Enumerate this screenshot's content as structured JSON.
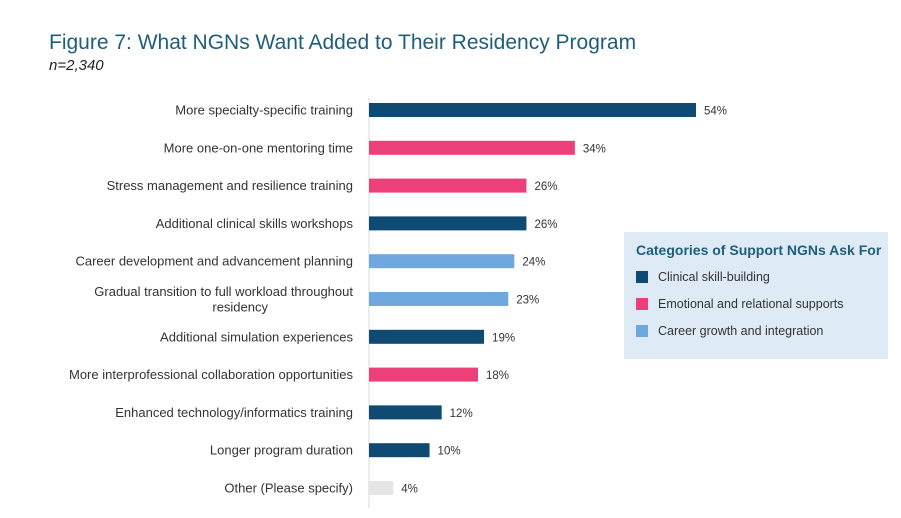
{
  "header": {
    "title": "Figure 7: What NGNs Want Added to Their Residency Program",
    "subtitle": "n=2,340"
  },
  "legend": {
    "title": "Categories of Support NGNs Ask For",
    "items": [
      {
        "label": "Clinical skill-building",
        "color": "#0e4a72"
      },
      {
        "label": "Emotional and relational supports",
        "color": "#ec407a"
      },
      {
        "label": "Career growth and integration",
        "color": "#6fa8dc"
      }
    ]
  },
  "chart_data": {
    "type": "bar",
    "orientation": "horizontal",
    "title": "Figure 7: What NGNs Want Added to Their Residency Program",
    "subtitle": "n=2,340",
    "xlim": [
      0,
      100
    ],
    "grid": false,
    "legend_position": "right",
    "categories": [
      [
        "More specialty-specific training"
      ],
      [
        "More one-on-one mentoring time"
      ],
      [
        "Stress management and resilience training"
      ],
      [
        "Additional clinical skills workshops"
      ],
      [
        "Career development and advancement planning"
      ],
      [
        "Gradual transition to full workload throughout",
        "residency"
      ],
      [
        "Additional simulation experiences"
      ],
      [
        "More interprofessional collaboration opportunities"
      ],
      [
        "Enhanced technology/informatics training"
      ],
      [
        "Longer program duration"
      ],
      [
        "Other (Please specify)"
      ]
    ],
    "values": [
      54,
      34,
      26,
      26,
      24,
      23,
      19,
      18,
      12,
      10,
      4
    ],
    "value_labels": [
      "54%",
      "34%",
      "26%",
      "26%",
      "24%",
      "23%",
      "19%",
      "18%",
      "12%",
      "10%",
      "4%"
    ],
    "colors": [
      "#0e4a72",
      "#ec407a",
      "#ec407a",
      "#0e4a72",
      "#6fa8dc",
      "#6fa8dc",
      "#0e4a72",
      "#ec407a",
      "#0e4a72",
      "#0e4a72",
      "#e6e6e6"
    ]
  }
}
